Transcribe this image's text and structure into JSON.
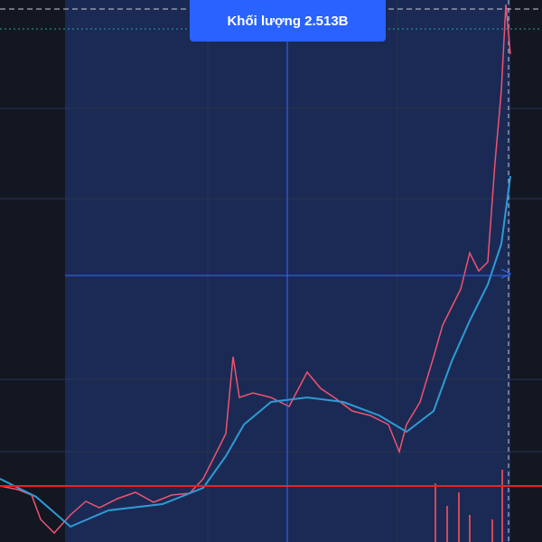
{
  "tooltip": {
    "label": "Khối lượng 2.513B"
  }
}
